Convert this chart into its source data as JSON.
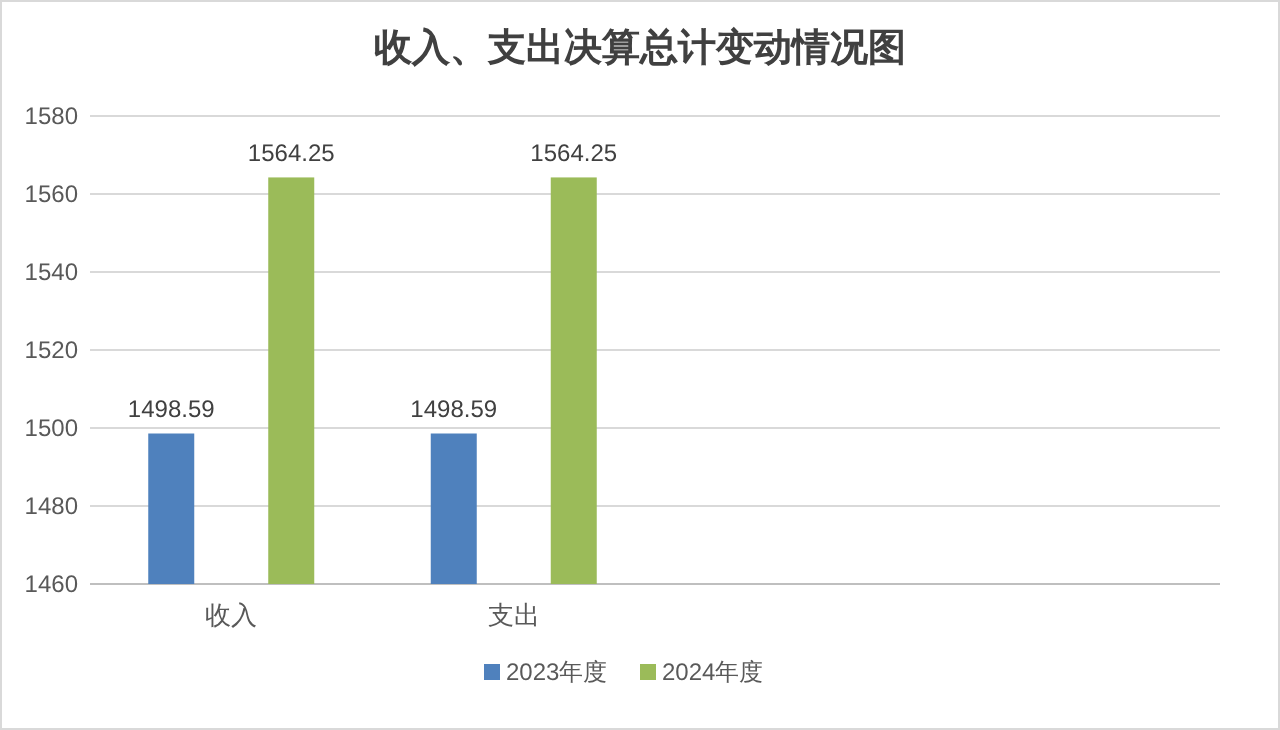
{
  "chart_data": {
    "type": "bar",
    "title": "收入、支出决算总计变动情况图",
    "categories": [
      "收入",
      "支出",
      null,
      null
    ],
    "series": [
      {
        "name": "2023年度",
        "color": "#4f81bd",
        "values": [
          1498.59,
          1498.59,
          null,
          null
        ]
      },
      {
        "name": "2024年度",
        "color": "#9bbb59",
        "values": [
          1564.25,
          1564.25,
          null,
          null
        ]
      }
    ],
    "ylim": [
      1460,
      1580
    ],
    "yticks": [
      1460,
      1480,
      1500,
      1520,
      1540,
      1560,
      1580
    ],
    "grid": "y",
    "legend": "bottom",
    "data_labels": true
  }
}
